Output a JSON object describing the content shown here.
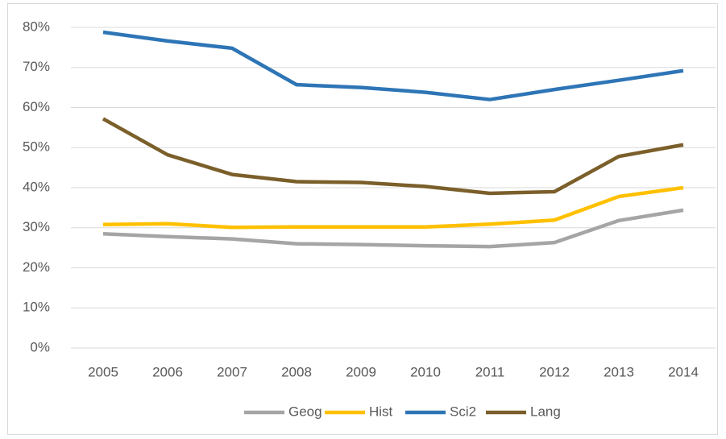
{
  "chart_data": {
    "type": "line",
    "categories": [
      "2005",
      "2006",
      "2007",
      "2008",
      "2009",
      "2010",
      "2011",
      "2012",
      "2013",
      "2014"
    ],
    "series": [
      {
        "name": "Geog",
        "color": "#a5a5a5",
        "values": [
          28.5,
          27.8,
          27.2,
          26.0,
          25.8,
          25.5,
          25.3,
          26.3,
          31.8,
          34.4
        ]
      },
      {
        "name": "Hist",
        "color": "#ffc000",
        "values": [
          30.8,
          31.0,
          30.1,
          30.2,
          30.2,
          30.2,
          30.9,
          31.9,
          37.8,
          40.0
        ]
      },
      {
        "name": "Sci2",
        "color": "#2e75b6",
        "values": [
          78.8,
          76.6,
          74.8,
          65.7,
          65.0,
          63.8,
          62.0,
          64.5,
          66.8,
          69.2
        ]
      },
      {
        "name": "Lang",
        "color": "#7b5f2a",
        "values": [
          57.2,
          48.2,
          43.3,
          41.5,
          41.3,
          40.3,
          38.6,
          39.0,
          47.8,
          50.7
        ]
      }
    ],
    "ylim": [
      0,
      80
    ],
    "yticks": [
      {
        "value": 0,
        "label": "0%"
      },
      {
        "value": 10,
        "label": "10%"
      },
      {
        "value": 20,
        "label": "20%"
      },
      {
        "value": 30,
        "label": "30%"
      },
      {
        "value": 40,
        "label": "40%"
      },
      {
        "value": 50,
        "label": "50%"
      },
      {
        "value": 60,
        "label": "60%"
      },
      {
        "value": 70,
        "label": "70%"
      },
      {
        "value": 80,
        "label": "80%"
      }
    ],
    "grid": true,
    "legend": "bottom"
  }
}
